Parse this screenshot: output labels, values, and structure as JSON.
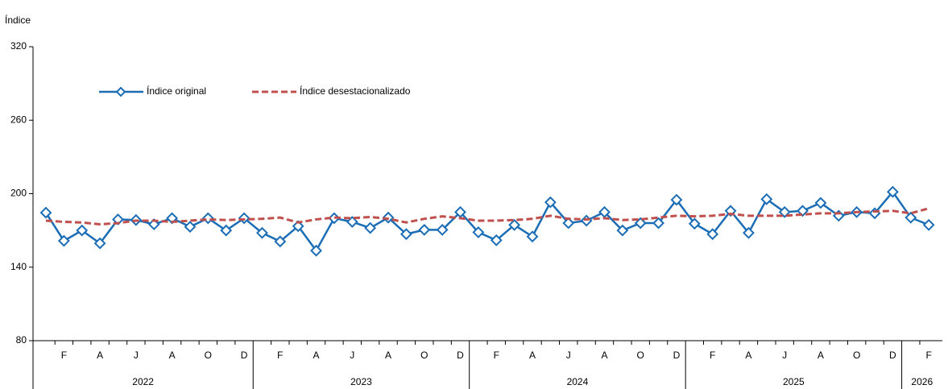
{
  "chart_data": {
    "type": "line",
    "y_label": "Índice",
    "categories": [
      null,
      "F",
      null,
      "A",
      null,
      "J",
      null,
      "A",
      null,
      "O",
      null,
      "D",
      null,
      "F",
      null,
      "A",
      null,
      "J",
      null,
      "A",
      null,
      "O",
      null,
      "D",
      null,
      "F",
      null,
      "A",
      null,
      "J",
      null,
      "A",
      null,
      "O",
      null,
      "D",
      null,
      "F",
      null,
      "A",
      null,
      "J",
      null,
      "A",
      null,
      "O",
      null,
      "D",
      null,
      "F"
    ],
    "years": [
      "2022",
      "2023",
      "2024",
      "2025",
      "2026"
    ],
    "ylim": [
      80,
      320
    ],
    "yticks": [
      80,
      140,
      200,
      260,
      320
    ],
    "grid": false,
    "legend": "top-left",
    "series": [
      {
        "name": "Índice original",
        "color": "#1b6db5",
        "marker": "diamond",
        "dash": false,
        "values": [
          184.5,
          161.5,
          170,
          159.5,
          179,
          178.5,
          175,
          180,
          173,
          180,
          170,
          180,
          168,
          161,
          173.5,
          153.5,
          180,
          177,
          172,
          180.5,
          167,
          170.5,
          170.5,
          185,
          168.5,
          162,
          174.5,
          165,
          193,
          176,
          178,
          185,
          170,
          176,
          176,
          195,
          175.5,
          167,
          186,
          168,
          195.5,
          185,
          186,
          192.5,
          182,
          185,
          184,
          201.5,
          180.5,
          174.5
        ]
      },
      {
        "name": "Índice desestacionalizado",
        "color": "#c0504d",
        "marker": null,
        "dash": true,
        "values": [
          178,
          177,
          176.5,
          175,
          176,
          178,
          178,
          177,
          178,
          179,
          178.5,
          179,
          179.5,
          180.5,
          176.5,
          179,
          180.5,
          180,
          181,
          179.5,
          176.5,
          179.5,
          181.5,
          180,
          178,
          178,
          178.5,
          179.5,
          182,
          179.5,
          179,
          180,
          178.5,
          179,
          180.5,
          182,
          181.5,
          182,
          183.5,
          182,
          182,
          182,
          183,
          184,
          184,
          185,
          185.5,
          186,
          184,
          188
        ]
      }
    ]
  }
}
